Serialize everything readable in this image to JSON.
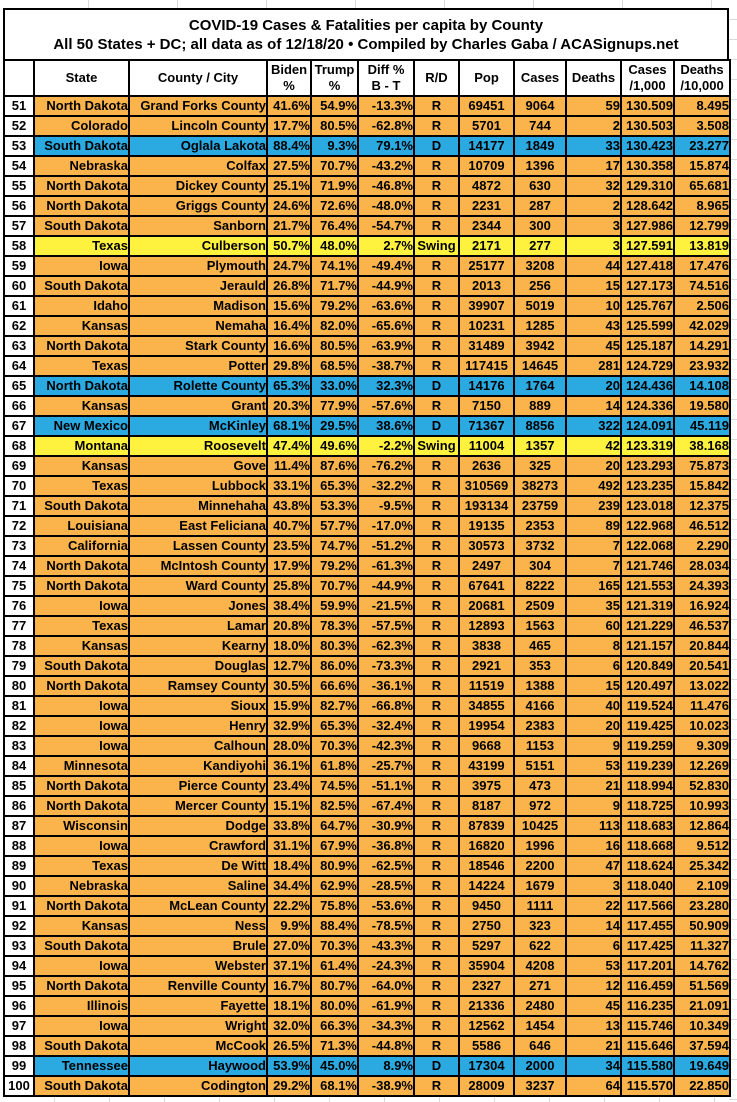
{
  "chart_data": {
    "type": "table",
    "title": "COVID-19 Cases & Fatalities per capita by County",
    "subtitle": "All 50 States + DC; all data as of 12/18/20  •  Compiled by Charles Gaba / ACASignups.net",
    "columns": [
      "",
      "State",
      "County / City",
      "Biden %",
      "Trump %",
      "Diff % B - T",
      "R/D",
      "Pop",
      "Cases",
      "Deaths",
      "Cases /1,000",
      "Deaths /10,000"
    ],
    "column_keys": [
      "rank",
      "state",
      "county",
      "biden-pct",
      "trump-pct",
      "diff-pct",
      "party",
      "pop",
      "cases",
      "deaths",
      "cases-per-1000",
      "deaths-per-10000"
    ],
    "header_lines": [
      [
        ""
      ],
      [
        "State"
      ],
      [
        "County / City"
      ],
      [
        "Biden",
        "%"
      ],
      [
        "Trump",
        "%"
      ],
      [
        "Diff %",
        "B - T"
      ],
      [
        "R/D"
      ],
      [
        "Pop"
      ],
      [
        "Cases"
      ],
      [
        "Deaths"
      ],
      [
        "Cases",
        "/1,000"
      ],
      [
        "Deaths",
        "/10,000"
      ]
    ],
    "rows": [
      [
        "51",
        "North Dakota",
        "Grand Forks County",
        "41.6%",
        "54.9%",
        "-13.3%",
        "R",
        "69451",
        "9064",
        "59",
        "130.509",
        "8.495"
      ],
      [
        "52",
        "Colorado",
        "Lincoln County",
        "17.7%",
        "80.5%",
        "-62.8%",
        "R",
        "5701",
        "744",
        "2",
        "130.503",
        "3.508"
      ],
      [
        "53",
        "South Dakota",
        "Oglala Lakota",
        "88.4%",
        "9.3%",
        "79.1%",
        "D",
        "14177",
        "1849",
        "33",
        "130.423",
        "23.277"
      ],
      [
        "54",
        "Nebraska",
        "Colfax",
        "27.5%",
        "70.7%",
        "-43.2%",
        "R",
        "10709",
        "1396",
        "17",
        "130.358",
        "15.874"
      ],
      [
        "55",
        "North Dakota",
        "Dickey County",
        "25.1%",
        "71.9%",
        "-46.8%",
        "R",
        "4872",
        "630",
        "32",
        "129.310",
        "65.681"
      ],
      [
        "56",
        "North Dakota",
        "Griggs County",
        "24.6%",
        "72.6%",
        "-48.0%",
        "R",
        "2231",
        "287",
        "2",
        "128.642",
        "8.965"
      ],
      [
        "57",
        "South Dakota",
        "Sanborn",
        "21.7%",
        "76.4%",
        "-54.7%",
        "R",
        "2344",
        "300",
        "3",
        "127.986",
        "12.799"
      ],
      [
        "58",
        "Texas",
        "Culberson",
        "50.7%",
        "48.0%",
        "2.7%",
        "Swing",
        "2171",
        "277",
        "3",
        "127.591",
        "13.819"
      ],
      [
        "59",
        "Iowa",
        "Plymouth",
        "24.7%",
        "74.1%",
        "-49.4%",
        "R",
        "25177",
        "3208",
        "44",
        "127.418",
        "17.476"
      ],
      [
        "60",
        "South Dakota",
        "Jerauld",
        "26.8%",
        "71.7%",
        "-44.9%",
        "R",
        "2013",
        "256",
        "15",
        "127.173",
        "74.516"
      ],
      [
        "61",
        "Idaho",
        "Madison",
        "15.6%",
        "79.2%",
        "-63.6%",
        "R",
        "39907",
        "5019",
        "10",
        "125.767",
        "2.506"
      ],
      [
        "62",
        "Kansas",
        "Nemaha",
        "16.4%",
        "82.0%",
        "-65.6%",
        "R",
        "10231",
        "1285",
        "43",
        "125.599",
        "42.029"
      ],
      [
        "63",
        "North Dakota",
        "Stark County",
        "16.6%",
        "80.5%",
        "-63.9%",
        "R",
        "31489",
        "3942",
        "45",
        "125.187",
        "14.291"
      ],
      [
        "64",
        "Texas",
        "Potter",
        "29.8%",
        "68.5%",
        "-38.7%",
        "R",
        "117415",
        "14645",
        "281",
        "124.729",
        "23.932"
      ],
      [
        "65",
        "North Dakota",
        "Rolette County",
        "65.3%",
        "33.0%",
        "32.3%",
        "D",
        "14176",
        "1764",
        "20",
        "124.436",
        "14.108"
      ],
      [
        "66",
        "Kansas",
        "Grant",
        "20.3%",
        "77.9%",
        "-57.6%",
        "R",
        "7150",
        "889",
        "14",
        "124.336",
        "19.580"
      ],
      [
        "67",
        "New Mexico",
        "McKinley",
        "68.1%",
        "29.5%",
        "38.6%",
        "D",
        "71367",
        "8856",
        "322",
        "124.091",
        "45.119"
      ],
      [
        "68",
        "Montana",
        "Roosevelt",
        "47.4%",
        "49.6%",
        "-2.2%",
        "Swing",
        "11004",
        "1357",
        "42",
        "123.319",
        "38.168"
      ],
      [
        "69",
        "Kansas",
        "Gove",
        "11.4%",
        "87.6%",
        "-76.2%",
        "R",
        "2636",
        "325",
        "20",
        "123.293",
        "75.873"
      ],
      [
        "70",
        "Texas",
        "Lubbock",
        "33.1%",
        "65.3%",
        "-32.2%",
        "R",
        "310569",
        "38273",
        "492",
        "123.235",
        "15.842"
      ],
      [
        "71",
        "South Dakota",
        "Minnehaha",
        "43.8%",
        "53.3%",
        "-9.5%",
        "R",
        "193134",
        "23759",
        "239",
        "123.018",
        "12.375"
      ],
      [
        "72",
        "Louisiana",
        "East Feliciana",
        "40.7%",
        "57.7%",
        "-17.0%",
        "R",
        "19135",
        "2353",
        "89",
        "122.968",
        "46.512"
      ],
      [
        "73",
        "California",
        "Lassen County",
        "23.5%",
        "74.7%",
        "-51.2%",
        "R",
        "30573",
        "3732",
        "7",
        "122.068",
        "2.290"
      ],
      [
        "74",
        "North Dakota",
        "McIntosh County",
        "17.9%",
        "79.2%",
        "-61.3%",
        "R",
        "2497",
        "304",
        "7",
        "121.746",
        "28.034"
      ],
      [
        "75",
        "North Dakota",
        "Ward County",
        "25.8%",
        "70.7%",
        "-44.9%",
        "R",
        "67641",
        "8222",
        "165",
        "121.553",
        "24.393"
      ],
      [
        "76",
        "Iowa",
        "Jones",
        "38.4%",
        "59.9%",
        "-21.5%",
        "R",
        "20681",
        "2509",
        "35",
        "121.319",
        "16.924"
      ],
      [
        "77",
        "Texas",
        "Lamar",
        "20.8%",
        "78.3%",
        "-57.5%",
        "R",
        "12893",
        "1563",
        "60",
        "121.229",
        "46.537"
      ],
      [
        "78",
        "Kansas",
        "Kearny",
        "18.0%",
        "80.3%",
        "-62.3%",
        "R",
        "3838",
        "465",
        "8",
        "121.157",
        "20.844"
      ],
      [
        "79",
        "South Dakota",
        "Douglas",
        "12.7%",
        "86.0%",
        "-73.3%",
        "R",
        "2921",
        "353",
        "6",
        "120.849",
        "20.541"
      ],
      [
        "80",
        "North Dakota",
        "Ramsey County",
        "30.5%",
        "66.6%",
        "-36.1%",
        "R",
        "11519",
        "1388",
        "15",
        "120.497",
        "13.022"
      ],
      [
        "81",
        "Iowa",
        "Sioux",
        "15.9%",
        "82.7%",
        "-66.8%",
        "R",
        "34855",
        "4166",
        "40",
        "119.524",
        "11.476"
      ],
      [
        "82",
        "Iowa",
        "Henry",
        "32.9%",
        "65.3%",
        "-32.4%",
        "R",
        "19954",
        "2383",
        "20",
        "119.425",
        "10.023"
      ],
      [
        "83",
        "Iowa",
        "Calhoun",
        "28.0%",
        "70.3%",
        "-42.3%",
        "R",
        "9668",
        "1153",
        "9",
        "119.259",
        "9.309"
      ],
      [
        "84",
        "Minnesota",
        "Kandiyohi",
        "36.1%",
        "61.8%",
        "-25.7%",
        "R",
        "43199",
        "5151",
        "53",
        "119.239",
        "12.269"
      ],
      [
        "85",
        "North Dakota",
        "Pierce County",
        "23.4%",
        "74.5%",
        "-51.1%",
        "R",
        "3975",
        "473",
        "21",
        "118.994",
        "52.830"
      ],
      [
        "86",
        "North Dakota",
        "Mercer County",
        "15.1%",
        "82.5%",
        "-67.4%",
        "R",
        "8187",
        "972",
        "9",
        "118.725",
        "10.993"
      ],
      [
        "87",
        "Wisconsin",
        "Dodge",
        "33.8%",
        "64.7%",
        "-30.9%",
        "R",
        "87839",
        "10425",
        "113",
        "118.683",
        "12.864"
      ],
      [
        "88",
        "Iowa",
        "Crawford",
        "31.1%",
        "67.9%",
        "-36.8%",
        "R",
        "16820",
        "1996",
        "16",
        "118.668",
        "9.512"
      ],
      [
        "89",
        "Texas",
        "De Witt",
        "18.4%",
        "80.9%",
        "-62.5%",
        "R",
        "18546",
        "2200",
        "47",
        "118.624",
        "25.342"
      ],
      [
        "90",
        "Nebraska",
        "Saline",
        "34.4%",
        "62.9%",
        "-28.5%",
        "R",
        "14224",
        "1679",
        "3",
        "118.040",
        "2.109"
      ],
      [
        "91",
        "North Dakota",
        "McLean County",
        "22.2%",
        "75.8%",
        "-53.6%",
        "R",
        "9450",
        "1111",
        "22",
        "117.566",
        "23.280"
      ],
      [
        "92",
        "Kansas",
        "Ness",
        "9.9%",
        "88.4%",
        "-78.5%",
        "R",
        "2750",
        "323",
        "14",
        "117.455",
        "50.909"
      ],
      [
        "93",
        "South Dakota",
        "Brule",
        "27.0%",
        "70.3%",
        "-43.3%",
        "R",
        "5297",
        "622",
        "6",
        "117.425",
        "11.327"
      ],
      [
        "94",
        "Iowa",
        "Webster",
        "37.1%",
        "61.4%",
        "-24.3%",
        "R",
        "35904",
        "4208",
        "53",
        "117.201",
        "14.762"
      ],
      [
        "95",
        "North Dakota",
        "Renville County",
        "16.7%",
        "80.7%",
        "-64.0%",
        "R",
        "2327",
        "271",
        "12",
        "116.459",
        "51.569"
      ],
      [
        "96",
        "Illinois",
        "Fayette",
        "18.1%",
        "80.0%",
        "-61.9%",
        "R",
        "21336",
        "2480",
        "45",
        "116.235",
        "21.091"
      ],
      [
        "97",
        "Iowa",
        "Wright",
        "32.0%",
        "66.3%",
        "-34.3%",
        "R",
        "12562",
        "1454",
        "13",
        "115.746",
        "10.349"
      ],
      [
        "98",
        "South Dakota",
        "McCook",
        "26.5%",
        "71.3%",
        "-44.8%",
        "R",
        "5586",
        "646",
        "21",
        "115.646",
        "37.594"
      ],
      [
        "99",
        "Tennessee",
        "Haywood",
        "53.9%",
        "45.0%",
        "8.9%",
        "D",
        "17304",
        "2000",
        "34",
        "115.580",
        "19.649"
      ],
      [
        "100",
        "South Dakota",
        "Codington",
        "29.2%",
        "68.1%",
        "-38.9%",
        "R",
        "28009",
        "3237",
        "64",
        "115.570",
        "22.850"
      ]
    ]
  },
  "colors": {
    "republican_row": "#FBB44C",
    "democratic_row": "#2BA9E1",
    "swing_row": "#FFF23F",
    "border": "#000000",
    "gridline": "#D9D9D9",
    "text": "#000000"
  }
}
